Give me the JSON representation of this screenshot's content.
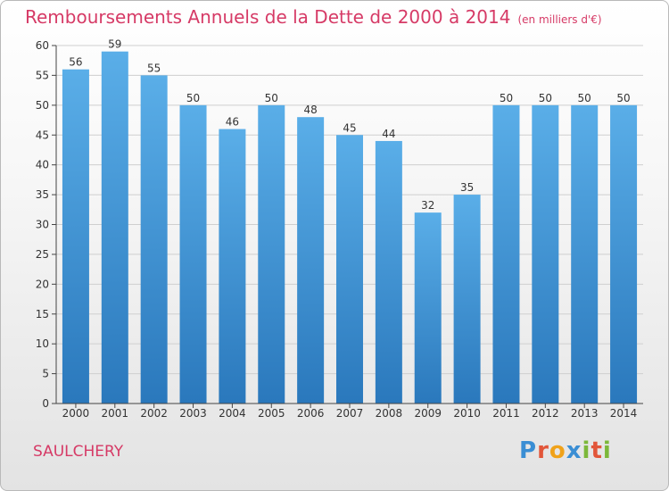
{
  "title": "Remboursements Annuels de la Dette de 2000 à 2014",
  "unit": "(en milliers d'€)",
  "commune": "SAULCHERY",
  "logo": {
    "text": "Proxiti",
    "letter_colors": [
      "#3a8ed4",
      "#e2563a",
      "#f0a21a",
      "#3a8ed4",
      "#7cb83a",
      "#e2563a",
      "#7cb83a"
    ]
  },
  "colors": {
    "accent": "#d63a66",
    "bar_light": "#5aaee8",
    "bar_dark": "#2a78bc",
    "grid": "#cfcfcf"
  },
  "chart_data": {
    "type": "bar",
    "title": "Remboursements Annuels de la Dette de 2000 à 2014",
    "xlabel": "",
    "ylabel": "",
    "categories": [
      "2000",
      "2001",
      "2002",
      "2003",
      "2004",
      "2005",
      "2006",
      "2007",
      "2008",
      "2009",
      "2010",
      "2011",
      "2012",
      "2013",
      "2014"
    ],
    "values": [
      56,
      59,
      55,
      50,
      46,
      50,
      48,
      45,
      44,
      32,
      35,
      50,
      50,
      50,
      50
    ],
    "ylim": [
      0,
      60
    ],
    "yticks": [
      0,
      5,
      10,
      15,
      20,
      25,
      30,
      35,
      40,
      45,
      50,
      55,
      60
    ],
    "grid": true
  }
}
